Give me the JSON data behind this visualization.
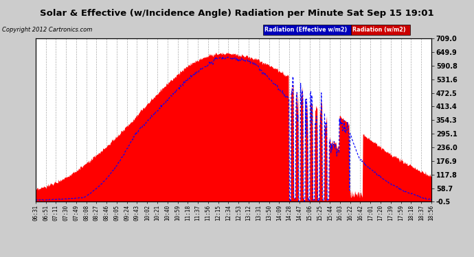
{
  "title": "Solar & Effective (w/Incidence Angle) Radiation per Minute Sat Sep 15 19:01",
  "copyright": "Copyright 2012 Cartronics.com",
  "ylim": [
    -0.5,
    709.0
  ],
  "yticks": [
    -0.5,
    58.7,
    117.8,
    176.9,
    236.0,
    295.1,
    354.3,
    413.4,
    472.5,
    531.6,
    590.8,
    649.9,
    709.0
  ],
  "ytick_labels": [
    "-0.5",
    "58.7",
    "117.8",
    "176.9",
    "236.0",
    "295.1",
    "354.3",
    "413.4",
    "472.5",
    "531.6",
    "590.8",
    "649.9",
    "709.0"
  ],
  "legend_effective_label": "Radiation (Effective w/m2)",
  "legend_radiation_label": "Radiation (w/m2)",
  "legend_effective_bg": "#0000bb",
  "legend_radiation_bg": "#cc0000",
  "bg_color": "#cccccc",
  "plot_bg": "#ffffff",
  "grid_color": "#aaaaaa",
  "fill_color": "#ff0000",
  "line_color": "#0000ff",
  "x_tick_labels": [
    "06:31",
    "06:51",
    "07:11",
    "07:30",
    "07:49",
    "08:08",
    "08:27",
    "08:46",
    "09:05",
    "09:24",
    "09:43",
    "10:02",
    "10:21",
    "10:40",
    "10:59",
    "11:18",
    "11:37",
    "11:56",
    "12:15",
    "12:34",
    "12:53",
    "13:12",
    "13:31",
    "13:50",
    "14:09",
    "14:28",
    "14:47",
    "15:06",
    "15:25",
    "15:44",
    "16:03",
    "16:22",
    "16:42",
    "17:01",
    "17:20",
    "17:39",
    "17:59",
    "18:18",
    "18:37",
    "18:56"
  ]
}
